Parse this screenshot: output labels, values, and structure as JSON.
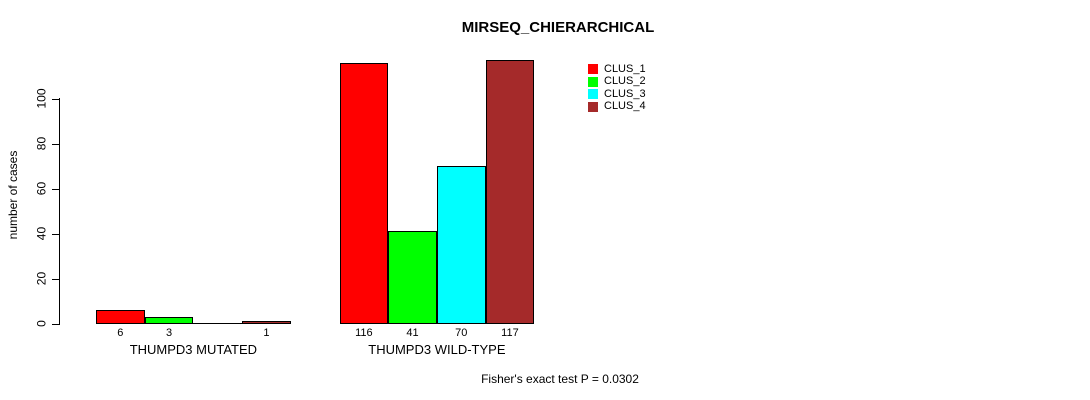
{
  "title": "MIRSEQ_CHIERARCHICAL",
  "chart_data": {
    "type": "bar",
    "title": "MIRSEQ_CHIERARCHICAL",
    "xlabel": "",
    "ylabel": "number of cases",
    "categories": [
      "THUMPD3 MUTATED",
      "THUMPD3 WILD-TYPE"
    ],
    "series": [
      {
        "name": "CLUS_1",
        "color": "#ff0000",
        "values": [
          6,
          116
        ]
      },
      {
        "name": "CLUS_2",
        "color": "#00ff00",
        "values": [
          3,
          41
        ]
      },
      {
        "name": "CLUS_3",
        "color": "#00ffff",
        "values": [
          0,
          70
        ]
      },
      {
        "name": "CLUS_4",
        "color": "#a52a2a",
        "values": [
          1,
          117
        ]
      }
    ],
    "bar_value_labels": [
      [
        "6",
        "3",
        "",
        "1"
      ],
      [
        "116",
        "41",
        "70",
        "117"
      ]
    ],
    "y_ticks": [
      0,
      20,
      40,
      60,
      80,
      100
    ],
    "ylim": [
      0,
      100
    ],
    "grid": false,
    "legend_position": "upper-right-inside",
    "annotation": "Fisher's exact test P = 0.0302"
  }
}
